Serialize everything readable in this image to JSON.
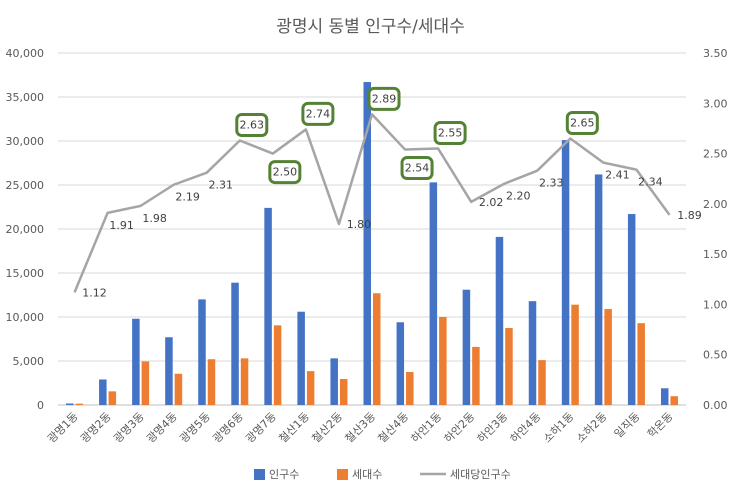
{
  "chart_data": {
    "type": "bar",
    "title": "광명시 동별 인구수/세대수",
    "categories": [
      "광명1동",
      "광명2동",
      "광명3동",
      "광명4동",
      "광명5동",
      "광명6동",
      "광명7동",
      "철산1동",
      "철산2동",
      "철산3동",
      "철산4동",
      "하안1동",
      "하안2동",
      "하안3동",
      "하안4동",
      "소하1동",
      "소하2동",
      "일직동",
      "학온동"
    ],
    "series": [
      {
        "name": "인구수",
        "kind": "bar",
        "axis": "left",
        "color": "#4472C4",
        "values": [
          170,
          2900,
          9800,
          7700,
          12000,
          13900,
          22400,
          10600,
          5300,
          36700,
          9400,
          25300,
          13100,
          19100,
          11800,
          30100,
          26200,
          21700,
          1900
        ]
      },
      {
        "name": "세대수",
        "kind": "bar",
        "axis": "left",
        "color": "#ED7D31",
        "values": [
          150,
          1550,
          4950,
          3550,
          5200,
          5300,
          9050,
          3850,
          2950,
          12700,
          3750,
          10000,
          6600,
          8750,
          5100,
          11400,
          10900,
          9300,
          1000
        ]
      },
      {
        "name": "세대당인구수",
        "kind": "line",
        "axis": "right",
        "color": "#A5A5A5",
        "values": [
          1.12,
          1.91,
          1.98,
          2.19,
          2.31,
          2.63,
          2.5,
          2.74,
          1.8,
          2.89,
          2.54,
          2.55,
          2.02,
          2.2,
          2.33,
          2.65,
          2.41,
          2.34,
          1.89
        ]
      }
    ],
    "data_labels": [
      "1.12",
      "1.91",
      "1.98",
      "2.19",
      "2.31",
      "2.63",
      "2.50",
      "2.74",
      "1.80",
      "2.89",
      "2.54",
      "2.55",
      "2.02",
      "2.20",
      "2.33",
      "2.65",
      "2.41",
      "2.34",
      "1.89"
    ],
    "highlighted_labels": [
      5,
      6,
      7,
      9,
      10,
      11,
      15
    ],
    "highlight_color": "#548235",
    "ylim_left": [
      0,
      40000
    ],
    "ylim_right": [
      0,
      3.5
    ],
    "left_ticks": [
      "0",
      "5,000",
      "10,000",
      "15,000",
      "20,000",
      "25,000",
      "30,000",
      "35,000",
      "40,000"
    ],
    "right_ticks": [
      "0.00",
      "0.50",
      "1.00",
      "1.50",
      "2.00",
      "2.50",
      "3.00",
      "3.50"
    ],
    "grid": true,
    "legend_position": "bottom"
  }
}
